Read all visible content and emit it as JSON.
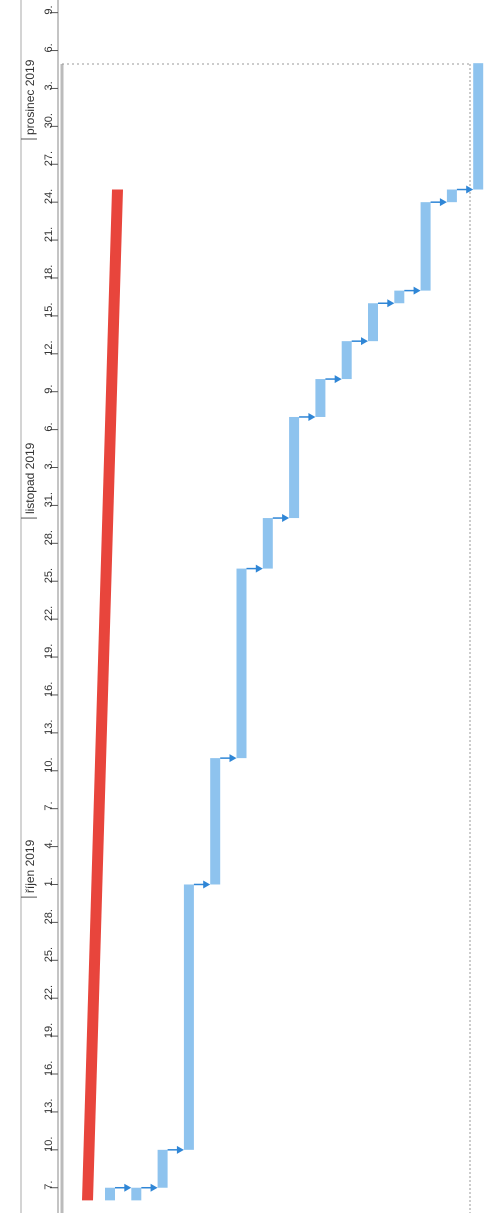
{
  "chart_data": {
    "type": "gantt",
    "xlim": [
      "2019-09-05",
      "2019-12-10"
    ],
    "xticks": [
      {
        "value": "2019-09-07",
        "label": "7."
      },
      {
        "value": "2019-09-10",
        "label": "10."
      },
      {
        "value": "2019-09-13",
        "label": "13."
      },
      {
        "value": "2019-09-16",
        "label": "16."
      },
      {
        "value": "2019-09-19",
        "label": "19."
      },
      {
        "value": "2019-09-22",
        "label": "22."
      },
      {
        "value": "2019-09-25",
        "label": "25."
      },
      {
        "value": "2019-09-28",
        "label": "28."
      },
      {
        "value": "2019-10-01",
        "label": "1."
      },
      {
        "value": "2019-10-04",
        "label": "4."
      },
      {
        "value": "2019-10-07",
        "label": "7."
      },
      {
        "value": "2019-10-10",
        "label": "10."
      },
      {
        "value": "2019-10-13",
        "label": "13."
      },
      {
        "value": "2019-10-16",
        "label": "16."
      },
      {
        "value": "2019-10-19",
        "label": "19."
      },
      {
        "value": "2019-10-22",
        "label": "22."
      },
      {
        "value": "2019-10-25",
        "label": "25."
      },
      {
        "value": "2019-10-28",
        "label": "28."
      },
      {
        "value": "2019-10-31",
        "label": "31."
      },
      {
        "value": "2019-11-03",
        "label": "3."
      },
      {
        "value": "2019-11-06",
        "label": "6."
      },
      {
        "value": "2019-11-09",
        "label": "9."
      },
      {
        "value": "2019-11-12",
        "label": "12."
      },
      {
        "value": "2019-11-15",
        "label": "15."
      },
      {
        "value": "2019-11-18",
        "label": "18."
      },
      {
        "value": "2019-11-21",
        "label": "21."
      },
      {
        "value": "2019-11-24",
        "label": "24."
      },
      {
        "value": "2019-11-27",
        "label": "27."
      },
      {
        "value": "2019-11-30",
        "label": "30."
      },
      {
        "value": "2019-12-03",
        "label": "3."
      },
      {
        "value": "2019-12-06",
        "label": "6."
      },
      {
        "value": "2019-12-09",
        "label": "9."
      }
    ],
    "months": [
      {
        "value": "2019-09-30",
        "label": "říjen 2019"
      },
      {
        "value": "2019-10-30",
        "label": "listopad 2019"
      },
      {
        "value": "2019-11-29",
        "label": "prosinec 2019"
      }
    ],
    "summary": {
      "start": "2019-09-06",
      "end": "2019-11-25",
      "color": "#e8453c"
    },
    "task_color": "#8ec3ee",
    "link_color": "#2f86d6",
    "tasks": [
      {
        "start": "2019-09-06",
        "end": "2019-09-07"
      },
      {
        "start": "2019-09-06",
        "end": "2019-09-07"
      },
      {
        "start": "2019-09-07",
        "end": "2019-09-10"
      },
      {
        "start": "2019-09-10",
        "end": "2019-10-01"
      },
      {
        "start": "2019-10-01",
        "end": "2019-10-11"
      },
      {
        "start": "2019-10-11",
        "end": "2019-10-26"
      },
      {
        "start": "2019-10-26",
        "end": "2019-10-30"
      },
      {
        "start": "2019-10-30",
        "end": "2019-11-07"
      },
      {
        "start": "2019-11-07",
        "end": "2019-11-10"
      },
      {
        "start": "2019-11-10",
        "end": "2019-11-13"
      },
      {
        "start": "2019-11-13",
        "end": "2019-11-16"
      },
      {
        "start": "2019-11-16",
        "end": "2019-11-17"
      },
      {
        "start": "2019-11-17",
        "end": "2019-11-24"
      },
      {
        "start": "2019-11-24",
        "end": "2019-11-25"
      },
      {
        "start": "2019-11-25",
        "end": "2019-12-05"
      }
    ]
  }
}
